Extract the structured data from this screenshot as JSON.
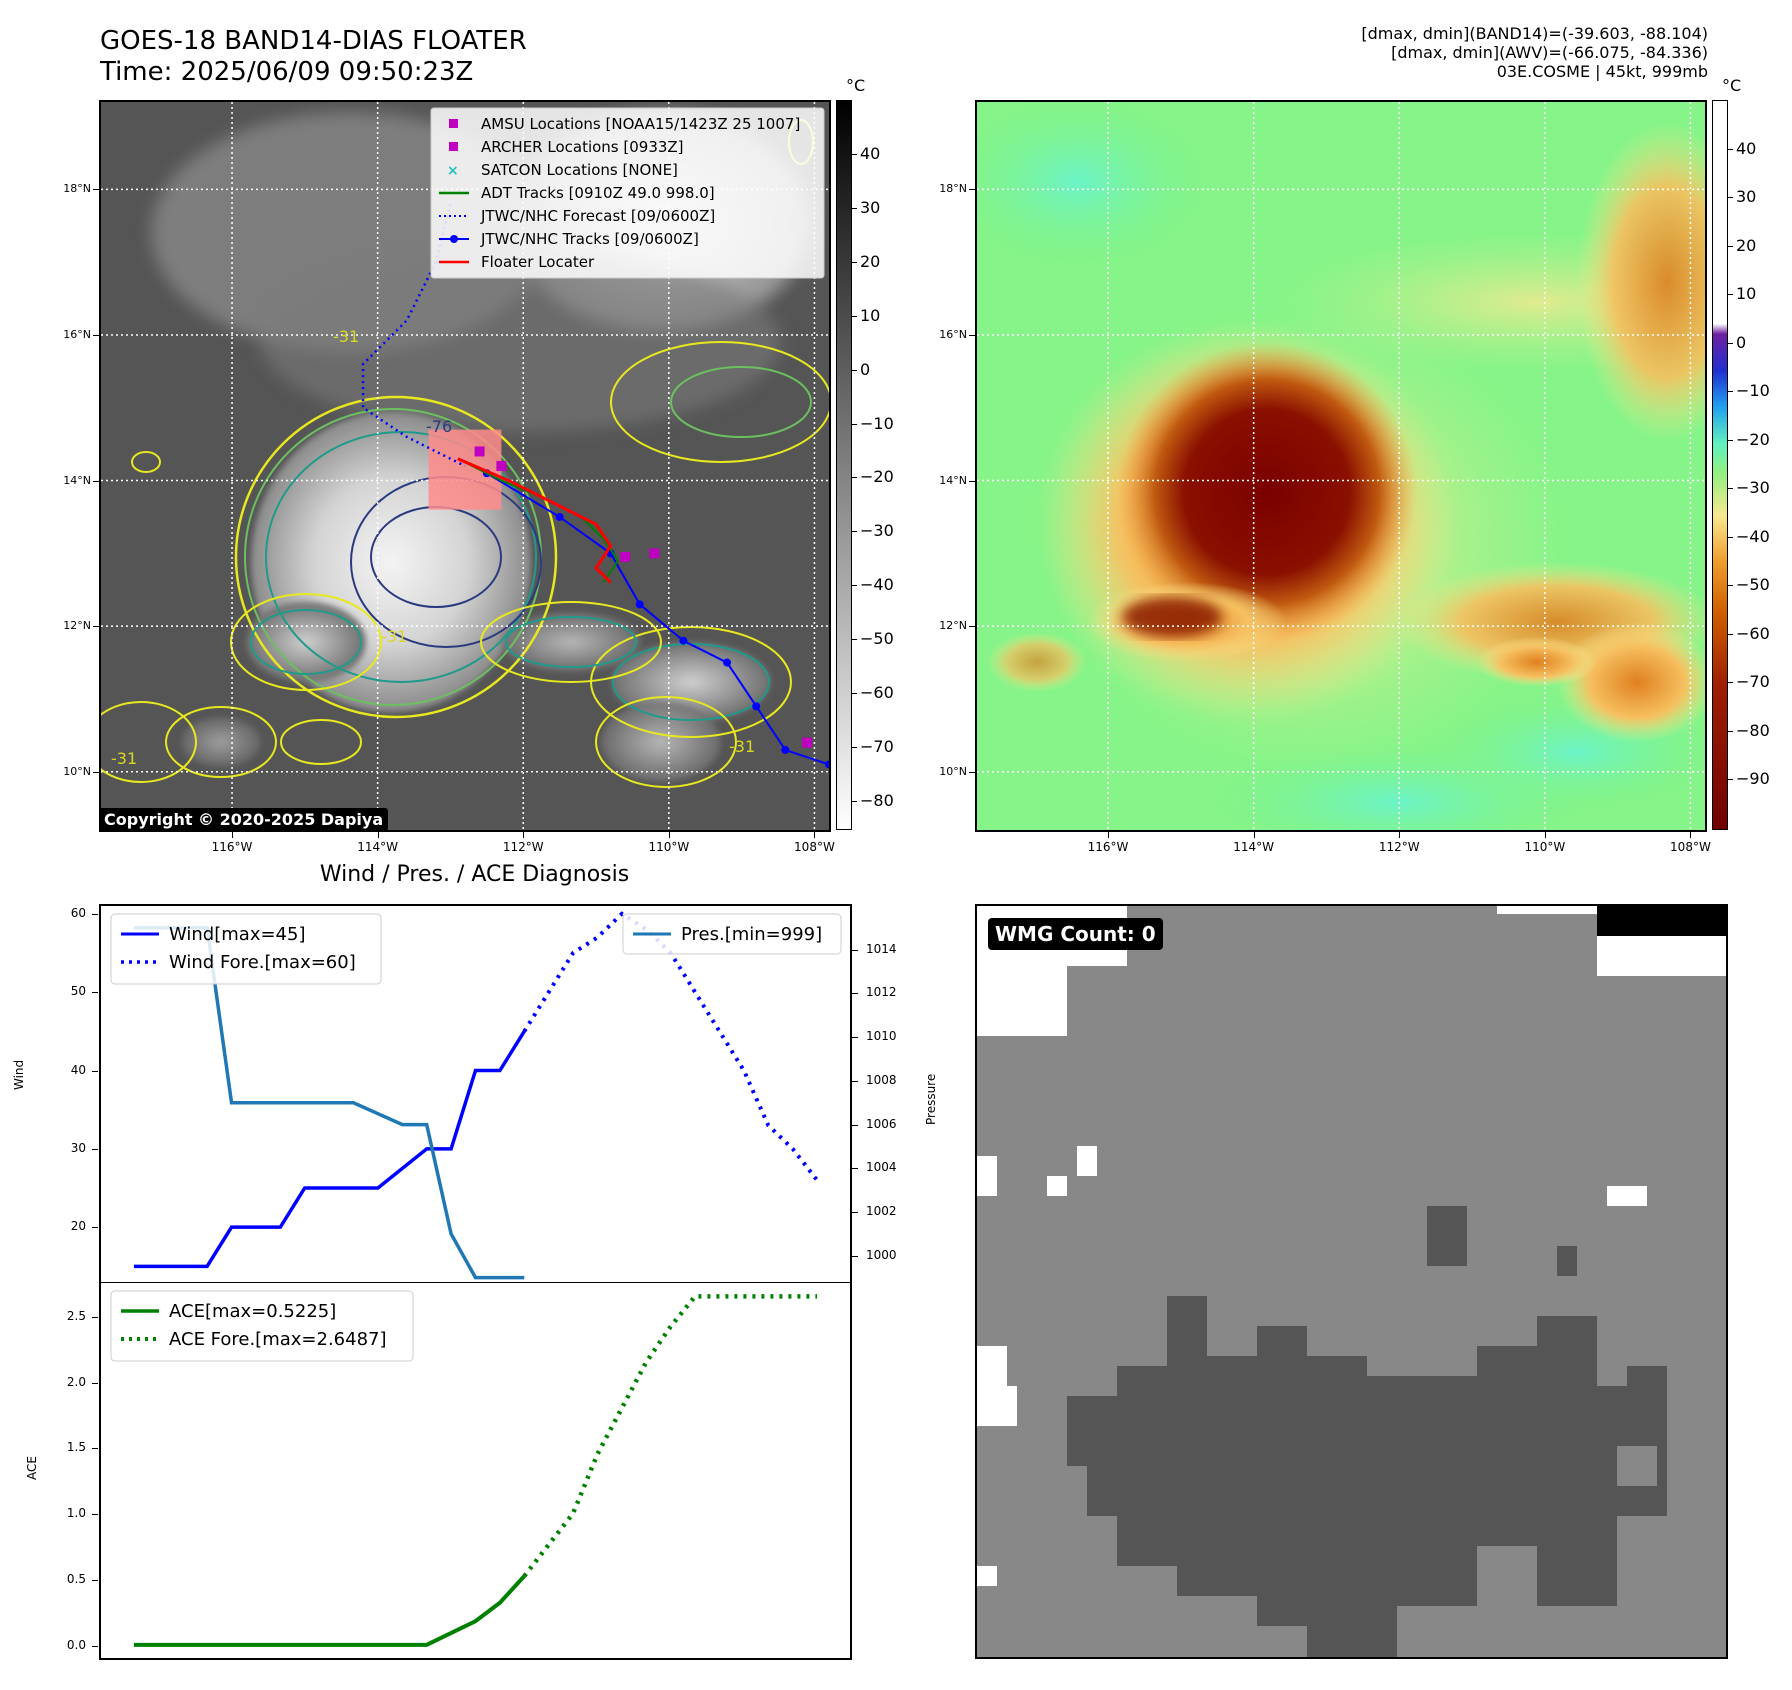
{
  "header_left": {
    "title": "GOES-18 BAND14-DIAS FLOATER",
    "time": "Time: 2025/06/09 09:50:23Z"
  },
  "header_right": {
    "line1": "[dmax, dmin](BAND14)=(-39.603, -88.104)",
    "line2": "[dmax, dmin](AWV)=(-66.075, -84.336)",
    "line3": "03E.COSME | 45kt, 999mb"
  },
  "copyright": "Copyright © 2020-2025 Dapiya",
  "map": {
    "lon_labels": [
      "116°W",
      "114°W",
      "112°W",
      "110°W",
      "108°W"
    ],
    "lat_labels": [
      "18°N",
      "16°N",
      "14°N",
      "12°N",
      "10°N"
    ],
    "lon_values": [
      -116,
      -114,
      -112,
      -110,
      -108
    ],
    "lat_values": [
      18,
      16,
      14,
      12,
      10
    ],
    "lon_range": [
      -117.8,
      -107.8
    ],
    "lat_range": [
      9.2,
      19.2
    ],
    "contour_labels": [
      "-76",
      "-31",
      "-31",
      "-31",
      "-31"
    ],
    "legend": [
      {
        "label": "AMSU Locations [NOAA15/1423Z 25 1007]",
        "kind": "square",
        "color": "#c000c0"
      },
      {
        "label": "ARCHER Locations [0933Z]",
        "kind": "square",
        "color": "#c000c0"
      },
      {
        "label": "SATCON Locations [NONE]",
        "kind": "x",
        "color": "#20c0c0"
      },
      {
        "label": "ADT Tracks [0910Z 49.0 998.0]",
        "kind": "line",
        "color": "#008000"
      },
      {
        "label": "JTWC/NHC Forecast [09/0600Z]",
        "kind": "dotted",
        "color": "#0000ff"
      },
      {
        "label": "JTWC/NHC Tracks [09/0600Z]",
        "kind": "line-dot",
        "color": "#0000ff"
      },
      {
        "label": "Floater Locater",
        "kind": "line",
        "color": "#ff0000"
      }
    ],
    "forecast_track": [
      [
        -113.0,
        17.8
      ],
      [
        -113.2,
        17.0
      ],
      [
        -113.6,
        16.2
      ],
      [
        -114.2,
        15.6
      ],
      [
        -114.2,
        15.0
      ],
      [
        -113.6,
        14.6
      ],
      [
        -112.8,
        14.2
      ]
    ],
    "best_track": [
      [
        -112.5,
        14.1
      ],
      [
        -111.5,
        13.5
      ],
      [
        -110.8,
        13.0
      ],
      [
        -110.4,
        12.3
      ],
      [
        -109.8,
        11.8
      ],
      [
        -109.2,
        11.5
      ],
      [
        -108.8,
        10.9
      ],
      [
        -108.4,
        10.3
      ],
      [
        -107.8,
        10.1
      ]
    ],
    "amsu_points": [
      [
        -112.6,
        14.4
      ],
      [
        -112.3,
        14.2
      ],
      [
        -110.6,
        12.95
      ],
      [
        -110.2,
        13.0
      ],
      [
        -108.1,
        10.4
      ]
    ],
    "floater_box": [
      [
        -113.3,
        13.6
      ],
      [
        -112.3,
        14.7
      ]
    ]
  },
  "colorbar_band14": {
    "unit": "°C",
    "ticks": [
      40,
      30,
      20,
      10,
      0,
      -10,
      -20,
      -30,
      -40,
      -50,
      -60,
      -70,
      -80
    ],
    "labels": [
      "40",
      "30",
      "20",
      "10",
      "0",
      "−10",
      "−20",
      "−30",
      "−40",
      "−50",
      "−60",
      "−70",
      "−80"
    ],
    "range": [
      -85,
      50
    ]
  },
  "colorbar_awv": {
    "unit": "°C",
    "ticks": [
      40,
      30,
      20,
      10,
      0,
      -10,
      -20,
      -30,
      -40,
      -50,
      -60,
      -70,
      -80,
      -90
    ],
    "labels": [
      "40",
      "30",
      "20",
      "10",
      "0",
      "−10",
      "−20",
      "−30",
      "−40",
      "−50",
      "−60",
      "−70",
      "−80",
      "−90"
    ],
    "range": [
      -100,
      50
    ]
  },
  "diagnosis_title": "Wind / Pres. / ACE Diagnosis",
  "wind_chart": {
    "ylabel_left": "Wind",
    "ylabel_right": "Pressure",
    "yticks_left": [
      20,
      30,
      40,
      50,
      60
    ],
    "ylim_left": [
      13,
      61
    ],
    "yticks_right": [
      1000,
      1002,
      1004,
      1006,
      1008,
      1010,
      1012,
      1014
    ],
    "ylim_right": [
      998.8,
      1016.0
    ],
    "legend_left": [
      "Wind[max=45]",
      "Wind Fore.[max=60]"
    ],
    "legend_right": [
      "Pres.[min=999]"
    ]
  },
  "chart_data": [
    {
      "type": "line",
      "x": [
        0,
        1,
        2,
        3,
        4,
        5,
        6,
        7,
        8,
        9,
        10,
        11,
        12,
        13,
        14,
        15,
        16,
        17,
        18,
        19,
        20,
        21,
        22,
        23,
        24,
        25,
        26,
        27,
        28
      ],
      "series": [
        {
          "name": "Wind[max=45]",
          "axis": "left",
          "color": "#0000ff",
          "style": "solid",
          "x": [
            0,
            3,
            4,
            6,
            7,
            9,
            10,
            12,
            13,
            14,
            15,
            16
          ],
          "values": [
            15,
            15,
            20,
            20,
            25,
            25,
            25,
            30,
            30,
            40,
            40,
            45
          ]
        },
        {
          "name": "Wind Fore.[max=60]",
          "axis": "left",
          "color": "#0000ff",
          "style": "dotted",
          "x": [
            16,
            17,
            18,
            19,
            20,
            21,
            22,
            23,
            24,
            25,
            26,
            27,
            28
          ],
          "values": [
            45,
            50,
            55,
            57,
            60,
            58,
            55,
            50,
            45,
            40,
            33,
            30,
            26
          ]
        },
        {
          "name": "Pres.[min=999]",
          "axis": "right",
          "color": "#1f77b4",
          "style": "solid",
          "x": [
            0,
            3,
            4,
            9,
            10,
            11,
            12,
            13,
            14,
            15,
            16
          ],
          "values": [
            1015,
            1015,
            1007,
            1007,
            1006.5,
            1006,
            1006,
            1001,
            999,
            999,
            999
          ]
        }
      ]
    },
    {
      "type": "line",
      "ylabel": "ACE",
      "yticks": [
        0.0,
        0.5,
        1.0,
        1.5,
        2.0,
        2.5
      ],
      "ytick_labels": [
        "0.0",
        "0.5",
        "1.0",
        "1.5",
        "2.0",
        "2.5"
      ],
      "ylim": [
        -0.1,
        2.75
      ],
      "x": [
        0,
        1,
        2,
        3,
        4,
        5,
        6,
        7,
        8,
        9,
        10,
        11,
        12,
        13,
        14,
        15,
        16,
        17,
        18,
        19,
        20,
        21,
        22,
        23,
        24,
        25,
        26,
        27,
        28
      ],
      "series": [
        {
          "name": "ACE[max=0.5225]",
          "color": "#008000",
          "style": "solid",
          "x": [
            0,
            12,
            14,
            15,
            16
          ],
          "values": [
            0,
            0,
            0.18,
            0.32,
            0.5225
          ]
        },
        {
          "name": "ACE Fore.[max=2.6487]",
          "color": "#008000",
          "style": "dotted",
          "x": [
            16,
            18,
            19,
            20,
            21,
            22,
            23,
            28
          ],
          "values": [
            0.5225,
            1.0,
            1.45,
            1.8,
            2.15,
            2.42,
            2.6487,
            2.6487
          ]
        }
      ]
    }
  ],
  "wmg_label": "WMG Count: 0"
}
